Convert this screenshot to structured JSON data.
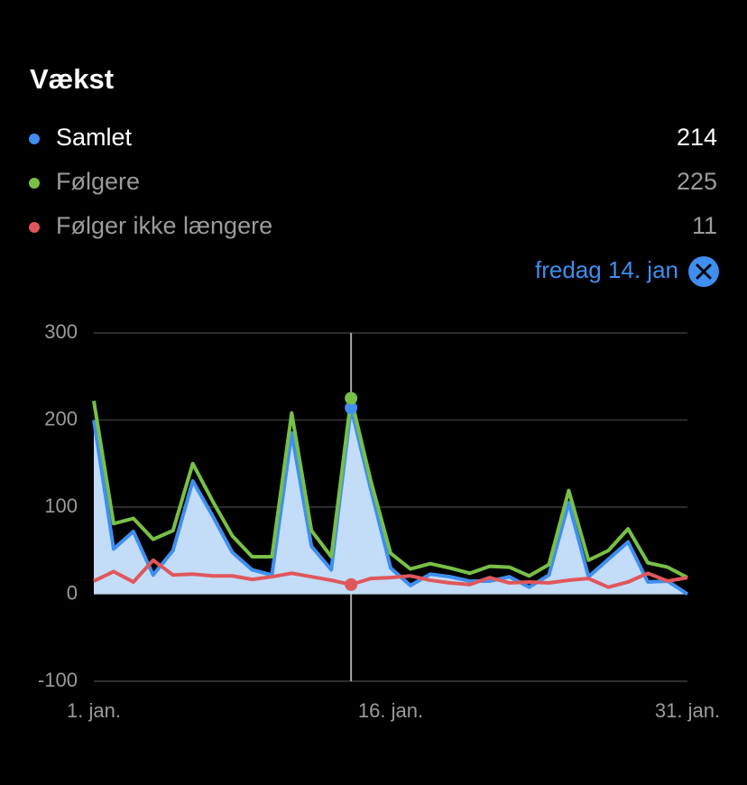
{
  "title": "Vækst",
  "chart_data": {
    "type": "area-line",
    "x": [
      1,
      2,
      3,
      4,
      5,
      6,
      7,
      8,
      9,
      10,
      11,
      12,
      13,
      14,
      15,
      16,
      17,
      18,
      19,
      20,
      21,
      22,
      23,
      24,
      25,
      26,
      27,
      28,
      29,
      30,
      31
    ],
    "xlim": [
      1,
      31
    ],
    "xticks": [
      {
        "value": 1,
        "label": "1. jan."
      },
      {
        "value": 16,
        "label": "16. jan."
      },
      {
        "value": 31,
        "label": "31. jan."
      }
    ],
    "ylim": [
      -100,
      300
    ],
    "yticks": [
      -100,
      0,
      100,
      200,
      300
    ],
    "grid": true,
    "selected_x": 14,
    "selected_label": "fredag 14. jan",
    "series": [
      {
        "name": "Samlet",
        "color": "#3f8ef0",
        "fill": "#c3dcf8",
        "values": [
          200,
          52,
          72,
          22,
          50,
          130,
          90,
          48,
          28,
          22,
          185,
          55,
          28,
          214,
          120,
          30,
          10,
          23,
          20,
          15,
          15,
          20,
          8,
          22,
          105,
          20,
          40,
          60,
          14,
          15,
          0
        ]
      },
      {
        "name": "Følgere",
        "color": "#78c046",
        "values": [
          222,
          81,
          87,
          63,
          73,
          150,
          107,
          67,
          43,
          43,
          208,
          73,
          43,
          225,
          130,
          47,
          29,
          35,
          30,
          24,
          32,
          31,
          21,
          34,
          119,
          39,
          50,
          75,
          36,
          31,
          19
        ]
      },
      {
        "name": "Følger ikke længere",
        "color": "#e0575b",
        "values": [
          15,
          26,
          14,
          39,
          22,
          23,
          21,
          21,
          17,
          20,
          24,
          20,
          16,
          11,
          18,
          19,
          21,
          16,
          13,
          11,
          19,
          13,
          14,
          13,
          16,
          18,
          8,
          14,
          24,
          15,
          19
        ]
      }
    ]
  }
}
